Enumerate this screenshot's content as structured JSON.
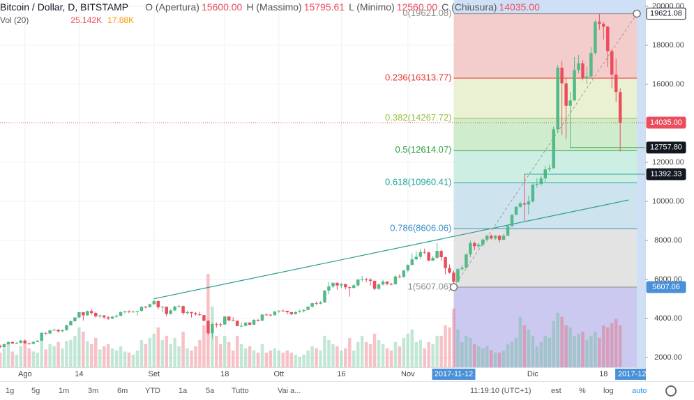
{
  "chart_data": {
    "type": "candlestick",
    "title": "Bitcoin / Dollar, D, BITSTAMP",
    "ohlc_header": [
      {
        "label": "O (Apertura)",
        "value": "15600.00"
      },
      {
        "label": "H (Massimo)",
        "value": "15795.61"
      },
      {
        "label": "L (Minimo)",
        "value": "12560.00"
      },
      {
        "label": "C (Chiusura)",
        "value": "14035.00"
      }
    ],
    "volume_header": {
      "label": "Vol (20)",
      "values": [
        "25.142K",
        "17.88K"
      ],
      "colors": [
        "#eb4d5c",
        "#ff9800"
      ]
    },
    "x": [
      "2017-07-26",
      "2017-07-27",
      "2017-07-28",
      "2017-07-29",
      "2017-07-30",
      "2017-07-31",
      "2017-08-01",
      "2017-08-02",
      "2017-08-03",
      "2017-08-04",
      "2017-08-05",
      "2017-08-06",
      "2017-08-07",
      "2017-08-08",
      "2017-08-09",
      "2017-08-10",
      "2017-08-11",
      "2017-08-12",
      "2017-08-13",
      "2017-08-14",
      "2017-08-15",
      "2017-08-16",
      "2017-08-17",
      "2017-08-18",
      "2017-08-19",
      "2017-08-20",
      "2017-08-21",
      "2017-08-22",
      "2017-08-23",
      "2017-08-24",
      "2017-08-25",
      "2017-08-26",
      "2017-08-27",
      "2017-08-28",
      "2017-08-29",
      "2017-08-30",
      "2017-08-31",
      "2017-09-01",
      "2017-09-02",
      "2017-09-03",
      "2017-09-04",
      "2017-09-05",
      "2017-09-06",
      "2017-09-07",
      "2017-09-08",
      "2017-09-09",
      "2017-09-10",
      "2017-09-11",
      "2017-09-12",
      "2017-09-13",
      "2017-09-14",
      "2017-09-15",
      "2017-09-16",
      "2017-09-17",
      "2017-09-18",
      "2017-09-19",
      "2017-09-20",
      "2017-09-21",
      "2017-09-22",
      "2017-09-23",
      "2017-09-24",
      "2017-09-25",
      "2017-09-26",
      "2017-09-27",
      "2017-09-28",
      "2017-09-29",
      "2017-09-30",
      "2017-10-01",
      "2017-10-02",
      "2017-10-03",
      "2017-10-04",
      "2017-10-05",
      "2017-10-06",
      "2017-10-07",
      "2017-10-08",
      "2017-10-09",
      "2017-10-10",
      "2017-10-11",
      "2017-10-12",
      "2017-10-13",
      "2017-10-14",
      "2017-10-15",
      "2017-10-16",
      "2017-10-17",
      "2017-10-18",
      "2017-10-19",
      "2017-10-20",
      "2017-10-21",
      "2017-10-22",
      "2017-10-23",
      "2017-10-24",
      "2017-10-25",
      "2017-10-26",
      "2017-10-27",
      "2017-10-28",
      "2017-10-29",
      "2017-10-30",
      "2017-10-31",
      "2017-11-01",
      "2017-11-02",
      "2017-11-03",
      "2017-11-04",
      "2017-11-05",
      "2017-11-06",
      "2017-11-07",
      "2017-11-08",
      "2017-11-09",
      "2017-11-10",
      "2017-11-11",
      "2017-11-12",
      "2017-11-13",
      "2017-11-14",
      "2017-11-15",
      "2017-11-16",
      "2017-11-17",
      "2017-11-18",
      "2017-11-19",
      "2017-11-20",
      "2017-11-21",
      "2017-11-22",
      "2017-11-23",
      "2017-11-24",
      "2017-11-25",
      "2017-11-26",
      "2017-11-27",
      "2017-11-28",
      "2017-11-29",
      "2017-11-30",
      "2017-12-01",
      "2017-12-02",
      "2017-12-03",
      "2017-12-04",
      "2017-12-05",
      "2017-12-06",
      "2017-12-07",
      "2017-12-08",
      "2017-12-09",
      "2017-12-10",
      "2017-12-11",
      "2017-12-12",
      "2017-12-13",
      "2017-12-14",
      "2017-12-15",
      "2017-12-16",
      "2017-12-17",
      "2017-12-18",
      "2017-12-19",
      "2017-12-20",
      "2017-12-21",
      "2017-12-22"
    ],
    "open": [
      2600,
      2530,
      2680,
      2790,
      2720,
      2750,
      2870,
      2730,
      2700,
      2800,
      2860,
      3260,
      3230,
      3390,
      3420,
      3340,
      3400,
      3650,
      3860,
      4050,
      4320,
      4160,
      4380,
      4280,
      4110,
      4150,
      4060,
      4000,
      4090,
      4140,
      4320,
      4360,
      4340,
      4350,
      4390,
      4590,
      4580,
      4730,
      4890,
      4570,
      4600,
      4230,
      4410,
      4610,
      4630,
      4280,
      4330,
      4270,
      4210,
      4170,
      3880,
      3240,
      3710,
      3700,
      3690,
      4100,
      3900,
      3880,
      3610,
      3620,
      3790,
      3680,
      3930,
      3890,
      4200,
      4190,
      4170,
      4360,
      4400,
      4390,
      4320,
      4220,
      4330,
      4380,
      4440,
      4600,
      4780,
      4760,
      4820,
      5430,
      5640,
      5830,
      5690,
      5760,
      5600,
      5570,
      5700,
      5990,
      6010,
      5990,
      5930,
      5520,
      5740,
      5890,
      5770,
      5750,
      6150,
      6130,
      6460,
      6740,
      7030,
      7160,
      7400,
      7380,
      6960,
      7110,
      7460,
      7140,
      6580,
      6350,
      5880,
      6530,
      6600,
      7280,
      7860,
      7700,
      7780,
      8040,
      8240,
      8100,
      8240,
      8030,
      8240,
      8730,
      9310,
      9720,
      9900,
      9840,
      10000,
      10850,
      10890,
      11180,
      11640,
      11700,
      13700,
      16850,
      16050,
      14900,
      15170,
      16730,
      17070,
      16300,
      16400,
      17600,
      19200,
      19100,
      18950,
      17700,
      16500,
      15600
    ],
    "high": [
      2670,
      2720,
      2830,
      2830,
      2790,
      2900,
      2920,
      2760,
      2820,
      2880,
      3290,
      3280,
      3430,
      3480,
      3450,
      3440,
      3670,
      3900,
      4070,
      4330,
      4330,
      4400,
      4480,
      4350,
      4200,
      4180,
      4120,
      4120,
      4200,
      4370,
      4400,
      4420,
      4400,
      4400,
      4650,
      4640,
      4760,
      4980,
      4940,
      4630,
      4600,
      4470,
      4650,
      4710,
      4660,
      4400,
      4330,
      4330,
      4350,
      4180,
      3920,
      3780,
      3800,
      3790,
      4120,
      4100,
      4060,
      3900,
      3790,
      3800,
      3810,
      3960,
      3970,
      4220,
      4250,
      4220,
      4370,
      4420,
      4470,
      4400,
      4340,
      4360,
      4460,
      4470,
      4620,
      4810,
      4870,
      4880,
      5450,
      5860,
      5840,
      5840,
      5820,
      5780,
      5650,
      5760,
      6020,
      6170,
      6080,
      6060,
      5950,
      5800,
      5980,
      5910,
      5820,
      6220,
      6280,
      6470,
      6770,
      7340,
      7440,
      7540,
      7580,
      7430,
      7200,
      7880,
      7500,
      7160,
      6770,
      6460,
      6580,
      6750,
      7330,
      7990,
      7940,
      7880,
      8100,
      8300,
      8300,
      8270,
      8270,
      8340,
      8770,
      9340,
      9750,
      9980,
      11392.33,
      10300,
      10920,
      11180,
      11320,
      11800,
      11870,
      13840,
      17000,
      17200,
      16300,
      15600,
      17400,
      17500,
      17230,
      16900,
      17900,
      19300,
      19621.08,
      19200,
      19000,
      17800,
      17300,
      15795.61
    ],
    "low": [
      2450,
      2500,
      2650,
      2690,
      2690,
      2720,
      2700,
      2650,
      2680,
      2780,
      2850,
      3170,
      3200,
      3350,
      3280,
      3310,
      3380,
      3640,
      3830,
      4020,
      3890,
      4150,
      4190,
      4050,
      4030,
      3970,
      3930,
      3960,
      4050,
      4100,
      4260,
      4270,
      4300,
      4140,
      4340,
      4530,
      4560,
      4700,
      4460,
      4320,
      4110,
      4200,
      4390,
      4560,
      4180,
      4200,
      4050,
      4150,
      4130,
      3850,
      3140,
      2970,
      3530,
      3570,
      3670,
      3860,
      3860,
      3600,
      3570,
      3600,
      3640,
      3670,
      3840,
      3870,
      4150,
      4110,
      4150,
      4290,
      4350,
      4210,
      4170,
      4200,
      4300,
      4310,
      4410,
      4560,
      4700,
      4730,
      4800,
      5240,
      5570,
      5470,
      5560,
      5500,
      5120,
      5520,
      5610,
      5900,
      5850,
      5690,
      5450,
      5470,
      5690,
      5700,
      5700,
      5740,
      6060,
      6090,
      6360,
      6740,
      6980,
      7050,
      7300,
      6950,
      6960,
      7050,
      6960,
      6250,
      6300,
      5607.06,
      5860,
      6450,
      6590,
      7140,
      7500,
      7600,
      7690,
      7930,
      8040,
      8010,
      7900,
      8020,
      8220,
      8710,
      9310,
      9660,
      9000,
      9330,
      9940,
      10700,
      10800,
      11000,
      11500,
      11680,
      13500,
      13400,
      13200,
      12757.8,
      15160,
      16560,
      16200,
      16000,
      16300,
      17500,
      18800,
      18300,
      16900,
      15800,
      15100,
      12560
    ],
    "close": [
      2530,
      2680,
      2790,
      2720,
      2750,
      2870,
      2730,
      2700,
      2800,
      2860,
      3260,
      3230,
      3390,
      3420,
      3340,
      3400,
      3650,
      3860,
      4050,
      4320,
      4160,
      4380,
      4280,
      4110,
      4150,
      4060,
      4000,
      4090,
      4140,
      4320,
      4360,
      4340,
      4350,
      4390,
      4590,
      4580,
      4730,
      4890,
      4570,
      4600,
      4230,
      4410,
      4610,
      4630,
      4280,
      4330,
      4270,
      4210,
      4170,
      3880,
      3240,
      3710,
      3700,
      3690,
      4100,
      3900,
      3880,
      3610,
      3620,
      3790,
      3680,
      3930,
      3890,
      4200,
      4190,
      4170,
      4360,
      4400,
      4390,
      4320,
      4220,
      4330,
      4380,
      4440,
      4600,
      4780,
      4760,
      4820,
      5430,
      5640,
      5830,
      5690,
      5760,
      5600,
      5570,
      5700,
      5990,
      6010,
      5990,
      5930,
      5520,
      5740,
      5890,
      5770,
      5750,
      6150,
      6130,
      6460,
      6740,
      7030,
      7160,
      7400,
      7380,
      6960,
      7110,
      7460,
      7140,
      6580,
      6350,
      5880,
      6530,
      6600,
      7280,
      7860,
      7700,
      7780,
      8040,
      8240,
      8100,
      8240,
      8030,
      8240,
      8730,
      9310,
      9720,
      9900,
      9840,
      10000,
      10850,
      10890,
      11180,
      11640,
      11700,
      13700,
      16850,
      16050,
      14900,
      15170,
      16730,
      17070,
      16300,
      16400,
      17600,
      19200,
      19100,
      18950,
      17700,
      16500,
      15600,
      14035
    ],
    "volume": [
      14,
      18,
      22,
      15,
      12,
      20,
      24,
      18,
      15,
      14,
      30,
      17,
      22,
      20,
      24,
      18,
      25,
      26,
      30,
      38,
      34,
      25,
      22,
      28,
      17,
      20,
      22,
      18,
      16,
      20,
      15,
      14,
      12,
      16,
      26,
      22,
      28,
      32,
      38,
      26,
      30,
      22,
      28,
      20,
      34,
      18,
      16,
      20,
      26,
      40,
      89,
      58,
      30,
      22,
      30,
      24,
      16,
      30,
      22,
      18,
      20,
      16,
      14,
      22,
      14,
      16,
      18,
      16,
      14,
      16,
      14,
      12,
      10,
      12,
      16,
      20,
      18,
      16,
      30,
      26,
      22,
      20,
      16,
      18,
      28,
      16,
      24,
      30,
      24,
      22,
      32,
      26,
      22,
      18,
      16,
      24,
      20,
      28,
      32,
      36,
      24,
      26,
      18,
      24,
      22,
      30,
      30,
      40,
      38,
      56,
      36,
      24,
      30,
      28,
      22,
      20,
      18,
      20,
      16,
      14,
      14,
      16,
      22,
      24,
      28,
      48,
      40,
      36,
      30,
      20,
      24,
      30,
      28,
      44,
      52,
      48,
      40,
      38,
      30,
      32,
      34,
      26,
      30,
      34,
      28,
      40,
      38,
      42,
      46,
      40
    ],
    "up_color": "#53b987",
    "down_color": "#eb4d5c",
    "xlim": [
      "2017-07-26",
      "2017-12-28"
    ],
    "ylim": [
      1500,
      20320
    ],
    "yticks": [
      {
        "value": 20000,
        "label": "20000.00"
      },
      {
        "value": 18000,
        "label": "18000.00"
      },
      {
        "value": 16000,
        "label": "16000.00"
      },
      {
        "value": 12000,
        "label": "12000.00"
      },
      {
        "value": 10000,
        "label": "10000.00"
      },
      {
        "value": 8000,
        "label": "8000.00"
      },
      {
        "value": 6000,
        "label": "6000.00"
      },
      {
        "value": 4000,
        "label": "4000.00"
      },
      {
        "value": 2000,
        "label": "2000.00"
      }
    ],
    "xticks": [
      {
        "value": "2017-08-01",
        "label": "Ago"
      },
      {
        "value": "2017-08-14",
        "label": "14"
      },
      {
        "value": "2017-09-01",
        "label": "Set"
      },
      {
        "value": "2017-09-18",
        "label": "18"
      },
      {
        "value": "2017-10-01",
        "label": "Ott"
      },
      {
        "value": "2017-10-16",
        "label": "16"
      },
      {
        "value": "2017-11-01",
        "label": "Nov"
      },
      {
        "value": "2017-12-01",
        "label": "Dic"
      },
      {
        "value": "2017-12-18",
        "label": "18"
      }
    ],
    "grid": true,
    "range": {
      "x": [
        "2017-11-12",
        "2017-12-26"
      ],
      "labels": [
        "2017-11-12",
        "2017-12"
      ],
      "color": "#cfe0f6",
      "label_color": "#4a90d9"
    },
    "fib": {
      "x": [
        "2017-11-12",
        "2017-12-26"
      ],
      "below_fill": "#cbc9ef",
      "levels": [
        {
          "value": 19621.08,
          "label": "0(19621.08)",
          "color": "#8e8e8e",
          "fill": "#f3cdcb"
        },
        {
          "value": 16313.77,
          "label": "0.236(16313.77)",
          "color": "#e53935",
          "fill": "#eaf1d2"
        },
        {
          "value": 14267.72,
          "label": "0.382(14267.72)",
          "color": "#9bbf3b",
          "fill": "#cfeccd"
        },
        {
          "value": 12614.07,
          "label": "0.5(12614.07)",
          "color": "#2e9e3e",
          "fill": "#cdeee2"
        },
        {
          "value": 10960.41,
          "label": "0.618(10960.41)",
          "color": "#26a69a",
          "fill": "#cde4ef"
        },
        {
          "value": 8606.06,
          "label": "0.786(8606.06)",
          "color": "#3d8fc6",
          "fill": "#e3e3e3"
        },
        {
          "value": 5607.06,
          "label": "1(5607.06)",
          "color": "#8e8e8e"
        }
      ]
    },
    "trend_line": {
      "x": [
        "2017-09-01",
        "2017-12-24"
      ],
      "values": [
        5010,
        10070
      ],
      "color": "#2a9d8f"
    },
    "price_tags": [
      {
        "value": 19621.08,
        "label": "19621.08",
        "color": "#ffffff",
        "text_color": "#131722"
      },
      {
        "value": 14035,
        "label": "14035.00",
        "color": "#eb4d5c",
        "text_color": "#ffffff",
        "from": "2017-07-26",
        "line_color": "#eb4d5c",
        "line": "dotted"
      },
      {
        "value": 12757.8,
        "label": "12757.80",
        "color": "#131722",
        "text_color": "#ffffff",
        "from": "2017-12-10",
        "line_color": "#4caf50"
      },
      {
        "value": 11392.33,
        "label": "11392.33",
        "color": "#131722",
        "text_color": "#ffffff",
        "from": "2017-11-29",
        "line_color": "#26a69a"
      },
      {
        "value": 5607.06,
        "label": "5607.06",
        "color": "#4a90d9",
        "text_color": "#ffffff"
      }
    ]
  },
  "toolbar": {
    "ranges": [
      "1g",
      "5g",
      "1m",
      "3m",
      "6m",
      "YTD",
      "1a",
      "5a",
      "Tutto",
      "Vai a..."
    ],
    "clock": "11:19:10 (UTC+1)",
    "options": [
      "est",
      "%",
      "log",
      "auto"
    ],
    "active_color": "#2196f3"
  }
}
